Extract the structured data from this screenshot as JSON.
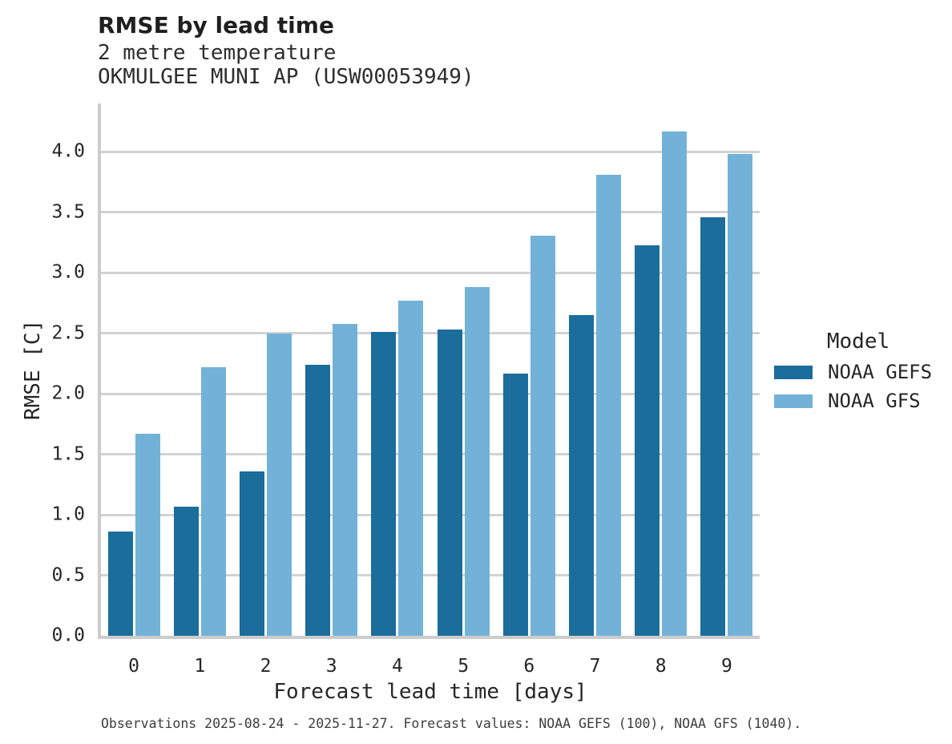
{
  "header": {
    "title": "RMSE by lead time",
    "subtitle1": "2 metre temperature",
    "subtitle2": "OKMULGEE MUNI AP (USW00053949)"
  },
  "caption": "Observations 2025-08-24 - 2025-11-27. Forecast values: NOAA GEFS (100), NOAA GFS (1040).",
  "legend": {
    "title": "Model"
  },
  "colors": {
    "gefs_dark_blue": "#1b6d9c",
    "gfs_light_blue": "#72b2d8",
    "gridline_gray": "#d2d2d2",
    "spine_gray": "#cccccc",
    "text": "#262626",
    "caption_text": "#3d3d3d"
  },
  "chart_data": {
    "type": "bar",
    "title": "RMSE by lead time",
    "subtitle": [
      "2 metre temperature",
      "OKMULGEE MUNI AP (USW00053949)"
    ],
    "categories": [
      "0",
      "1",
      "2",
      "3",
      "4",
      "5",
      "6",
      "7",
      "8",
      "9"
    ],
    "series": [
      {
        "name": "NOAA GEFS",
        "color": "#1b6d9c",
        "values": [
          0.86,
          1.07,
          1.36,
          2.24,
          2.51,
          2.53,
          2.17,
          2.65,
          3.23,
          3.46
        ]
      },
      {
        "name": "NOAA GFS",
        "color": "#72b2d8",
        "values": [
          1.67,
          2.22,
          2.5,
          2.58,
          2.77,
          2.88,
          3.31,
          3.81,
          4.17,
          3.98
        ]
      }
    ],
    "xlabel": "Forecast lead time [days]",
    "ylabel": "RMSE [C]",
    "ylim": [
      0,
      4.4
    ],
    "yticks": [
      0.0,
      0.5,
      1.0,
      1.5,
      2.0,
      2.5,
      3.0,
      3.5,
      4.0
    ],
    "ytick_labels": [
      "0.0",
      "0.5",
      "1.0",
      "1.5",
      "2.0",
      "2.5",
      "3.0",
      "3.5",
      "4.0"
    ],
    "grid": "horizontal",
    "legend_title": "Model",
    "legend_position": "center-right"
  }
}
